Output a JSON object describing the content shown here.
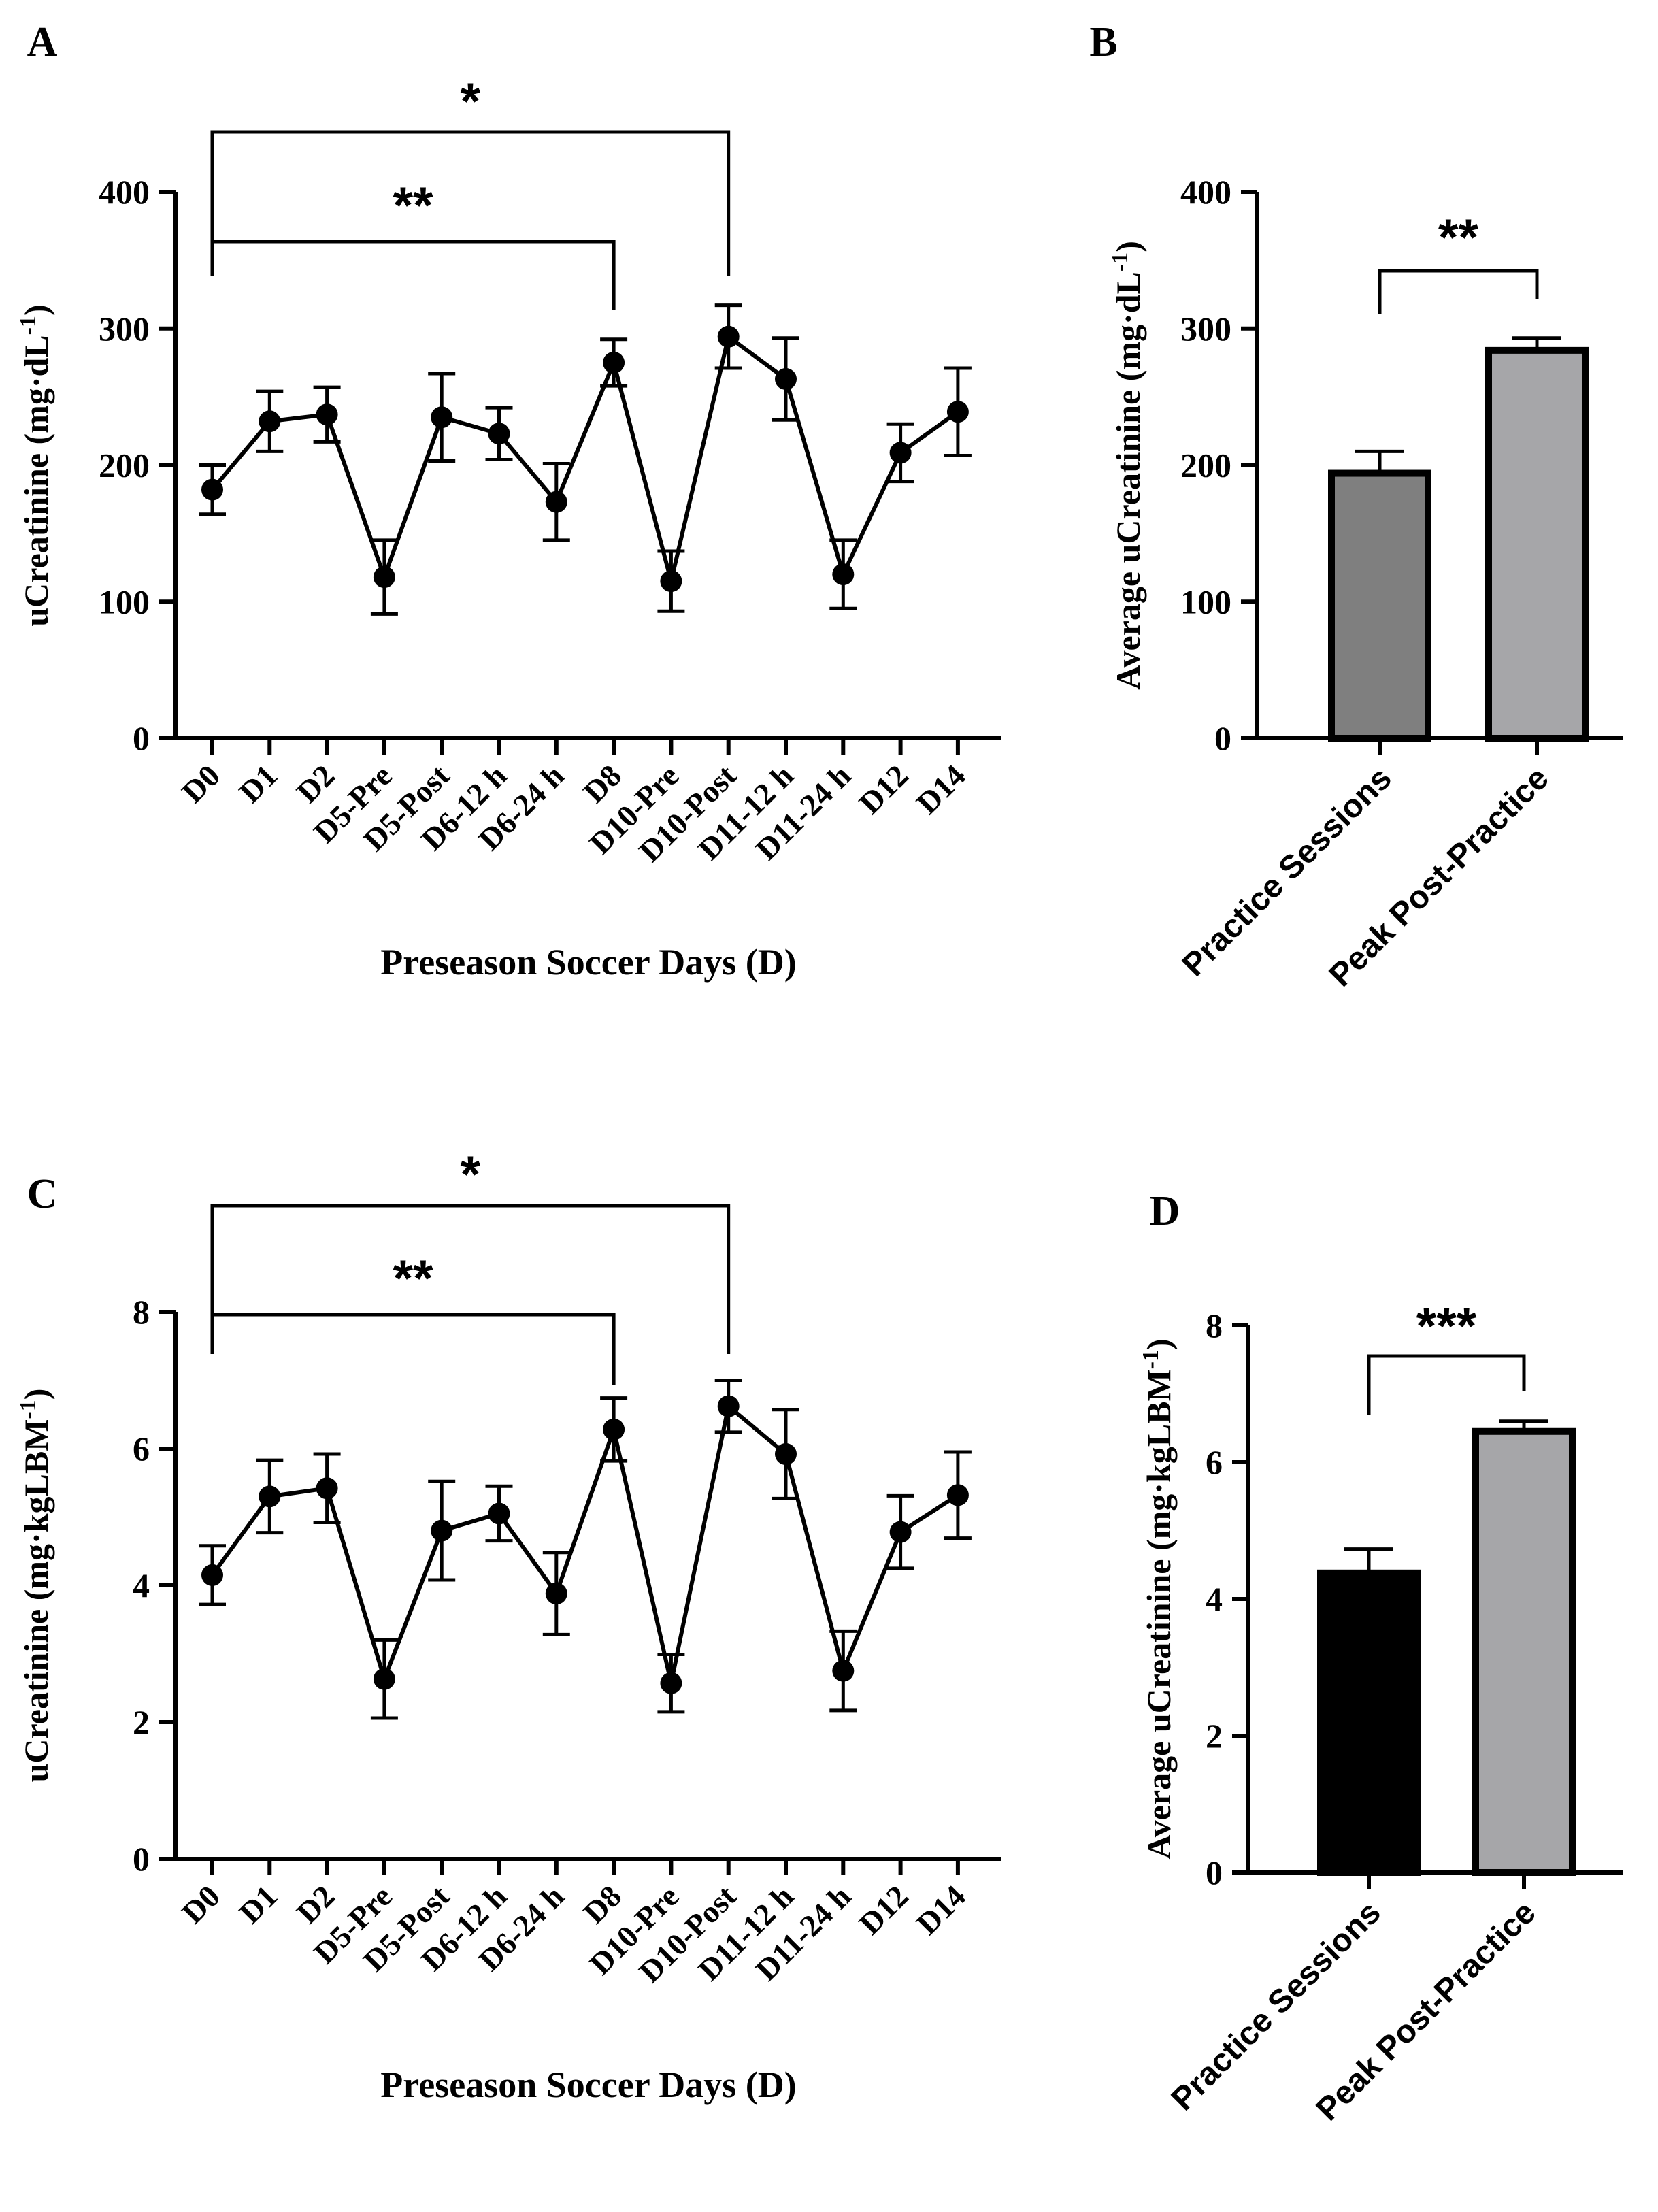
{
  "chart_data": [
    {
      "panel": "A",
      "type": "line",
      "xlabel": "Preseason Soccer Days (D)",
      "ylabel_main": "uCreatinine (mg·dL",
      "ylabel_sup": "-1",
      "ylabel_end": ")",
      "ylim": [
        0,
        400
      ],
      "yticks": [
        "0",
        "100",
        "200",
        "300",
        "400"
      ],
      "categories": [
        "D0",
        "D1",
        "D2",
        "D5-Pre",
        "D5-Post",
        "D6-12 h",
        "D6-24 h",
        "D8",
        "D10-Pre",
        "D10-Post",
        "D11-12 h",
        "D11-24 h",
        "D12",
        "D14"
      ],
      "values": [
        182,
        232,
        237,
        118,
        235,
        223,
        173,
        275,
        115,
        294,
        263,
        120,
        209,
        239
      ],
      "errors": [
        18,
        22,
        20,
        27,
        32,
        19,
        28,
        17,
        22,
        23,
        30,
        25,
        21,
        32
      ],
      "annotations": [
        {
          "label": "**",
          "from": "D0",
          "to": "D8"
        },
        {
          "label": "*",
          "from": "D0",
          "to": "D10-Post"
        }
      ]
    },
    {
      "panel": "B",
      "type": "bar",
      "ylabel_main": "Average uCreatinine (mg·dL",
      "ylabel_sup": "-1",
      "ylabel_end": ")",
      "ylim": [
        0,
        400
      ],
      "yticks": [
        "0",
        "100",
        "200",
        "300",
        "400"
      ],
      "categories": [
        "Practice Sessions",
        "Peak Post-Practice"
      ],
      "values": [
        194,
        284
      ],
      "errors": [
        16,
        9
      ],
      "colors": [
        "#7f7f7f",
        "#a6a6a9"
      ],
      "annotation": "**"
    },
    {
      "panel": "C",
      "type": "line",
      "xlabel": "Preseason Soccer Days (D)",
      "ylabel_main": "uCreatinine (mg·kgLBM",
      "ylabel_sup": "-1",
      "ylabel_end": ")",
      "ylim": [
        0,
        8
      ],
      "yticks": [
        "0",
        "2",
        "4",
        "6",
        "8"
      ],
      "categories": [
        "D0",
        "D1",
        "D2",
        "D5-Pre",
        "D5-Post",
        "D6-12 h",
        "D6-24 h",
        "D8",
        "D10-Pre",
        "D10-Post",
        "D11-12 h",
        "D11-24 h",
        "D12",
        "D14"
      ],
      "values": [
        4.15,
        5.3,
        5.42,
        2.63,
        4.8,
        5.05,
        3.88,
        6.28,
        2.57,
        6.62,
        5.92,
        2.75,
        4.78,
        5.32
      ],
      "errors": [
        0.43,
        0.53,
        0.5,
        0.57,
        0.72,
        0.4,
        0.6,
        0.46,
        0.42,
        0.38,
        0.65,
        0.58,
        0.53,
        0.63
      ],
      "annotations": [
        {
          "label": "**",
          "from": "D0",
          "to": "D8"
        },
        {
          "label": "*",
          "from": "D0",
          "to": "D10-Post"
        }
      ]
    },
    {
      "panel": "D",
      "type": "bar",
      "ylabel_main": "Average uCreatinine (mg·kgLBM",
      "ylabel_sup": "-1",
      "ylabel_end": ")",
      "ylim": [
        0,
        8
      ],
      "yticks": [
        "0",
        "2",
        "4",
        "6",
        "8"
      ],
      "categories": [
        "Practice Sessions",
        "Peak Post-Practice"
      ],
      "values": [
        4.38,
        6.45
      ],
      "errors": [
        0.35,
        0.15
      ],
      "colors": [
        "#000000",
        "#a6a6a9"
      ],
      "annotation": "***"
    }
  ]
}
